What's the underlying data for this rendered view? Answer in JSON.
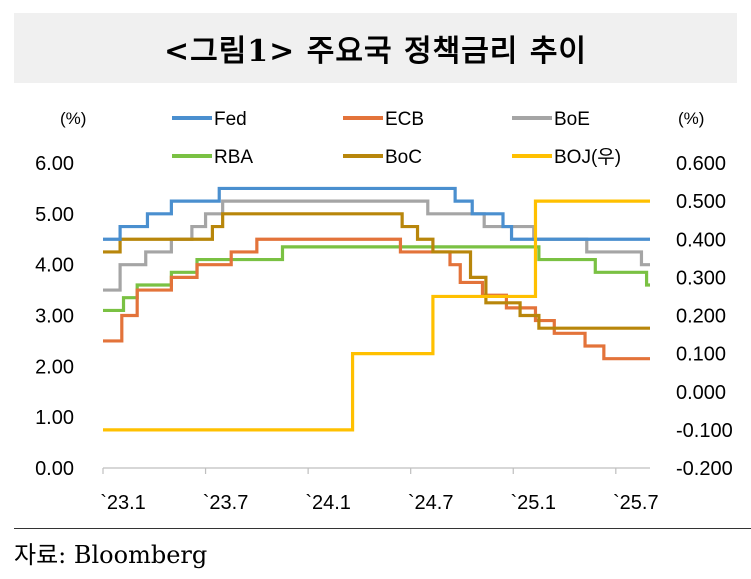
{
  "header": {
    "title": "<그림1> 주요국 정책금리 추이"
  },
  "footer": {
    "source": "자료: Bloomberg"
  },
  "chart_data": {
    "type": "line",
    "title": "<그림1> 주요국 정책금리 추이",
    "left_unit": "(%)",
    "right_unit": "(%)",
    "ylim_left": [
      0,
      6
    ],
    "ylim_right": [
      -0.2,
      0.6
    ],
    "left_ticks": [
      "6.00",
      "5.00",
      "4.00",
      "3.00",
      "2.00",
      "1.00",
      "0.00"
    ],
    "right_ticks": [
      "0.600",
      "0.500",
      "0.400",
      "0.300",
      "0.200",
      "0.100",
      "0.000",
      "-0.100",
      "-0.200"
    ],
    "x_ticks": [
      {
        "label": "`23.1",
        "value": 0
      },
      {
        "label": "`23.7",
        "value": 6
      },
      {
        "label": "`24.1",
        "value": 12
      },
      {
        "label": "`24.7",
        "value": 18
      },
      {
        "label": "`25.1",
        "value": 24
      },
      {
        "label": "`25.7",
        "value": 30
      }
    ],
    "x_range": [
      0,
      32
    ],
    "legend_position": "top",
    "series": [
      {
        "name": "Fed",
        "axis": "left",
        "color": "#4a8fcf",
        "points": [
          [
            0,
            4.5
          ],
          [
            1,
            4.75
          ],
          [
            2.6,
            5.0
          ],
          [
            4,
            5.25
          ],
          [
            6.8,
            5.5
          ],
          [
            20.6,
            5.25
          ],
          [
            21.6,
            5.0
          ],
          [
            23.4,
            4.75
          ],
          [
            23.9,
            4.5
          ],
          [
            32,
            4.5
          ]
        ]
      },
      {
        "name": "ECB",
        "axis": "left",
        "color": "#e3733a",
        "points": [
          [
            0,
            2.5
          ],
          [
            1.1,
            3.0
          ],
          [
            2,
            3.5
          ],
          [
            4,
            3.75
          ],
          [
            5.5,
            4.0
          ],
          [
            7.5,
            4.25
          ],
          [
            9,
            4.5
          ],
          [
            17.4,
            4.25
          ],
          [
            20.3,
            4.0
          ],
          [
            20.9,
            3.65
          ],
          [
            22.2,
            3.4
          ],
          [
            23.6,
            3.15
          ],
          [
            25.3,
            2.9
          ],
          [
            26.4,
            2.65
          ],
          [
            28.2,
            2.4
          ],
          [
            29.3,
            2.15
          ],
          [
            32,
            2.15
          ]
        ]
      },
      {
        "name": "BoE",
        "axis": "left",
        "color": "#a5a5a5",
        "points": [
          [
            0,
            3.5
          ],
          [
            1,
            4.0
          ],
          [
            2.5,
            4.25
          ],
          [
            4,
            4.5
          ],
          [
            5.2,
            4.75
          ],
          [
            6,
            5.0
          ],
          [
            7,
            5.25
          ],
          [
            19,
            5.0
          ],
          [
            22.3,
            4.75
          ],
          [
            25.2,
            4.5
          ],
          [
            28.3,
            4.25
          ],
          [
            31.5,
            4.0
          ],
          [
            32,
            4.0
          ]
        ]
      },
      {
        "name": "RBA",
        "axis": "left",
        "color": "#7ac143",
        "points": [
          [
            0,
            3.1
          ],
          [
            1.2,
            3.35
          ],
          [
            2,
            3.6
          ],
          [
            4,
            3.85
          ],
          [
            5.5,
            4.1
          ],
          [
            10.5,
            4.35
          ],
          [
            25.5,
            4.1
          ],
          [
            28.8,
            3.85
          ],
          [
            31.8,
            3.6
          ],
          [
            32,
            3.6
          ]
        ]
      },
      {
        "name": "BoC",
        "axis": "left",
        "color": "#b8860b",
        "points": [
          [
            0,
            4.25
          ],
          [
            1,
            4.5
          ],
          [
            6.4,
            4.75
          ],
          [
            7,
            5.0
          ],
          [
            17.5,
            4.75
          ],
          [
            18.4,
            4.5
          ],
          [
            19.3,
            4.25
          ],
          [
            20.8,
            4.25
          ],
          [
            21.5,
            3.75
          ],
          [
            22.4,
            3.25
          ],
          [
            24.4,
            3.0
          ],
          [
            25.5,
            2.75
          ],
          [
            32,
            2.75
          ]
        ]
      },
      {
        "name": "BOJ(우)",
        "axis": "right",
        "color": "#ffc000",
        "points": [
          [
            0,
            -0.1
          ],
          [
            14.6,
            -0.1
          ],
          [
            14.6,
            0.1
          ],
          [
            19.3,
            0.1
          ],
          [
            19.3,
            0.25
          ],
          [
            25.3,
            0.25
          ],
          [
            25.3,
            0.5
          ],
          [
            32,
            0.5
          ]
        ]
      }
    ]
  }
}
